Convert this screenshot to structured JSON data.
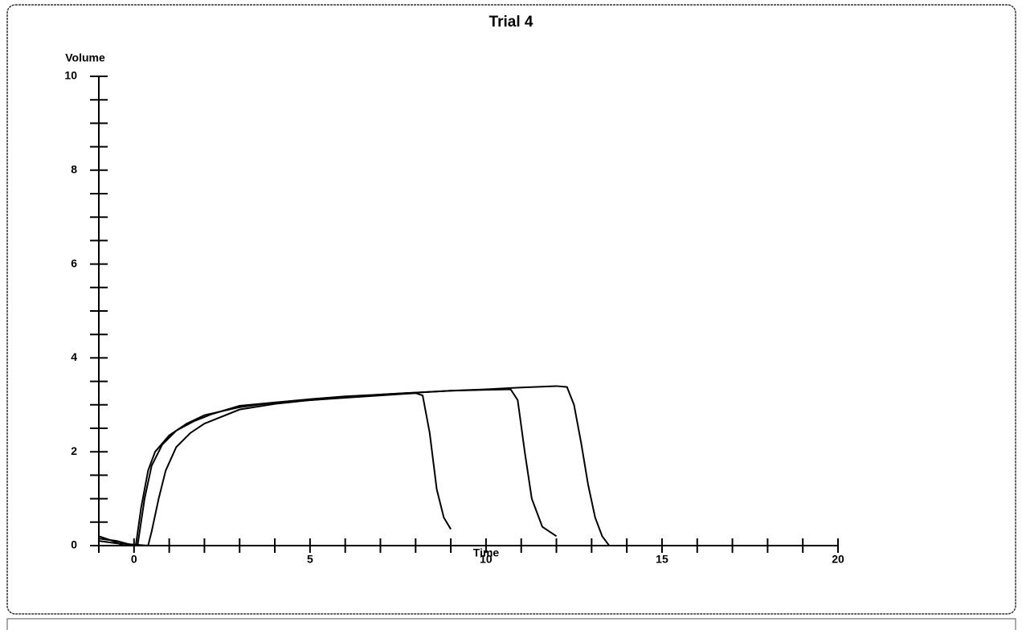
{
  "chart_data": {
    "type": "line",
    "title": "Trial 4",
    "xlabel": "Time",
    "ylabel": "Volume",
    "xlim": [
      -1,
      20
    ],
    "ylim": [
      0,
      10
    ],
    "xticks": [
      0,
      5,
      10,
      15,
      20
    ],
    "yticks": [
      0,
      2,
      4,
      6,
      8,
      10
    ],
    "xminorticks": [
      -1,
      1,
      2,
      3,
      4,
      6,
      7,
      8,
      9,
      11,
      12,
      13,
      14,
      16,
      17,
      18,
      19
    ],
    "yminorticks": [
      0.5,
      1,
      1.5,
      2.5,
      3,
      3.5,
      4.5,
      5,
      5.5,
      6.5,
      7,
      7.5,
      8.5,
      9,
      9.5
    ],
    "series": [
      {
        "color": "#000000",
        "x": [
          -1,
          -0.6,
          -0.3,
          0.05,
          0.2,
          0.4,
          0.6,
          1,
          1.5,
          2,
          3,
          4,
          5,
          6,
          7,
          8,
          8.2,
          8.4,
          8.6,
          8.8,
          9.0
        ],
        "values": [
          0.2,
          0.1,
          0,
          0,
          0.8,
          1.6,
          2.0,
          2.35,
          2.6,
          2.78,
          2.95,
          3.05,
          3.1,
          3.15,
          3.2,
          3.25,
          3.2,
          2.4,
          1.2,
          0.6,
          0.35
        ]
      },
      {
        "color": "#000000",
        "x": [
          -1,
          -0.5,
          0,
          0.1,
          0.3,
          0.5,
          0.8,
          1.2,
          1.7,
          2.2,
          3,
          4,
          5,
          6,
          7,
          8,
          9,
          10,
          10.7,
          10.9,
          11.1,
          11.3,
          11.6,
          12
        ],
        "values": [
          0.15,
          0.1,
          0,
          0,
          1,
          1.7,
          2.15,
          2.45,
          2.65,
          2.8,
          2.98,
          3.05,
          3.12,
          3.18,
          3.22,
          3.26,
          3.3,
          3.32,
          3.33,
          3.1,
          2.0,
          1.0,
          0.4,
          0.2
        ]
      },
      {
        "color": "#000000",
        "x": [
          -1,
          -0.5,
          0.4,
          0.5,
          0.7,
          0.9,
          1.2,
          1.6,
          2,
          3,
          4,
          5,
          7,
          9,
          10,
          11,
          12,
          12.3,
          12.5,
          12.7,
          12.9,
          13.1,
          13.3,
          13.5
        ],
        "values": [
          0.1,
          0.05,
          0,
          0.3,
          1.0,
          1.6,
          2.1,
          2.4,
          2.6,
          2.9,
          3.02,
          3.1,
          3.22,
          3.3,
          3.33,
          3.37,
          3.4,
          3.38,
          3.0,
          2.2,
          1.3,
          0.6,
          0.2,
          0
        ]
      }
    ]
  }
}
